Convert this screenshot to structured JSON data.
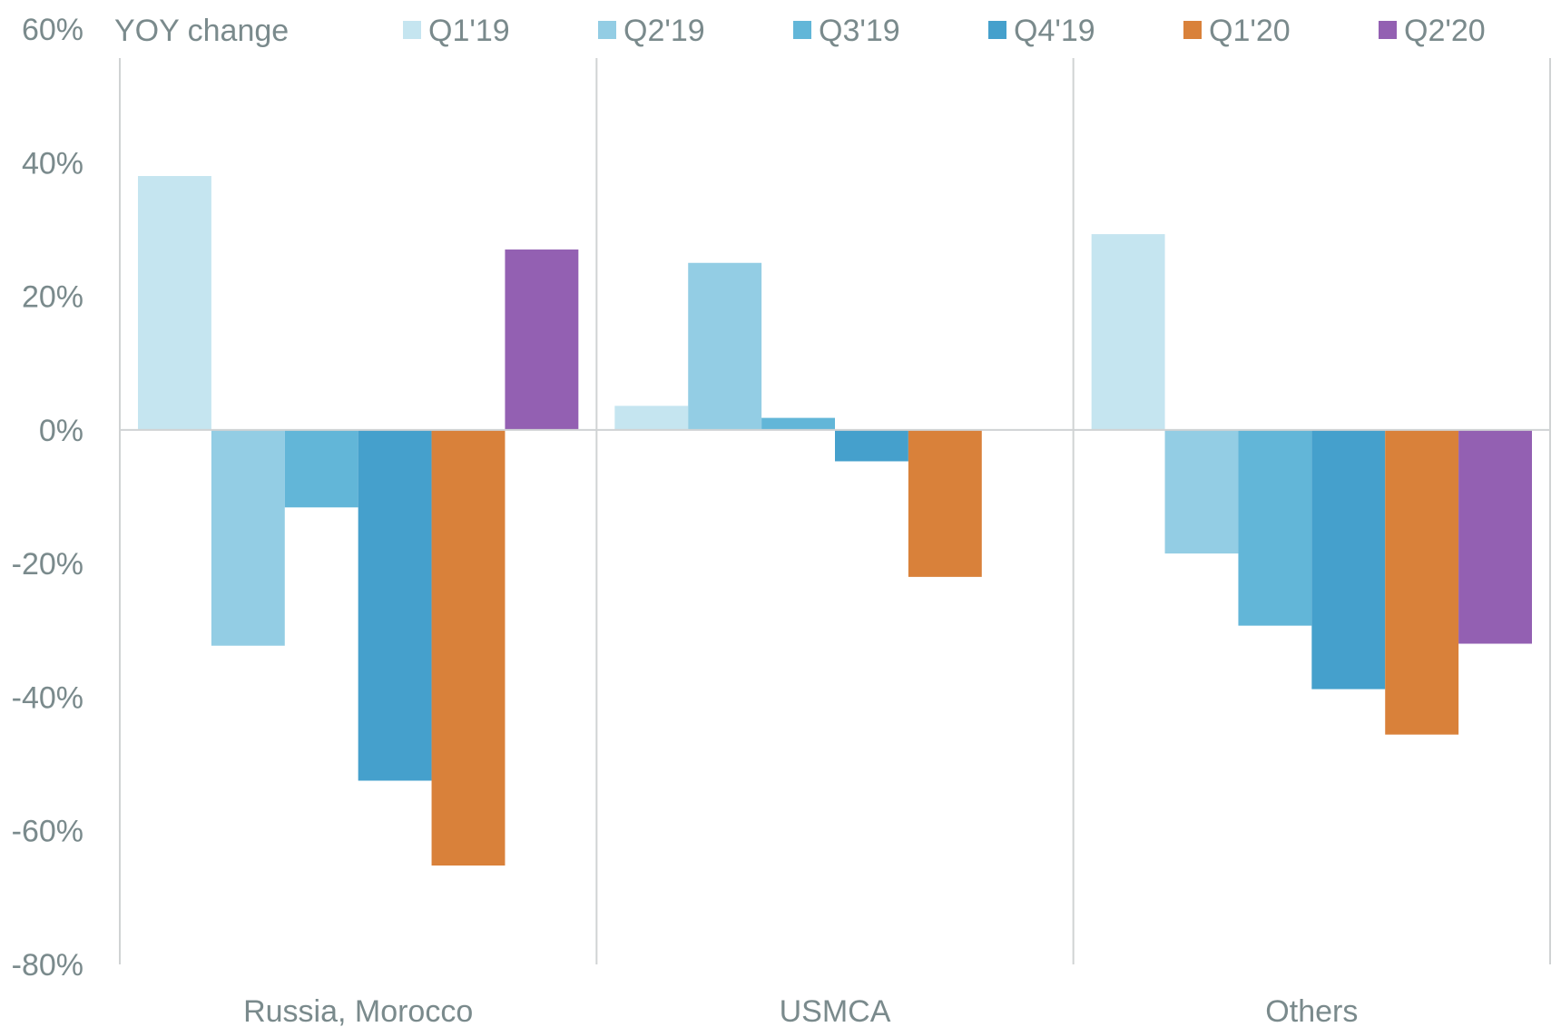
{
  "chart_data": {
    "type": "bar",
    "title": "",
    "xlabel": "",
    "ylabel": "YOY change",
    "ylim": [
      -80,
      60
    ],
    "yticks": [
      60,
      40,
      20,
      0,
      -20,
      -40,
      -60,
      -80
    ],
    "ytick_suffix": "%",
    "categories": [
      "Russia, Morocco",
      "USMCA",
      "Others"
    ],
    "series": [
      {
        "name": "Q1'19",
        "color": "#c5e5f0",
        "values": [
          38,
          3.6,
          29.3
        ]
      },
      {
        "name": "Q2'19",
        "color": "#93cde4",
        "values": [
          -32.3,
          25,
          -18.5
        ]
      },
      {
        "name": "Q3'19",
        "color": "#62b6d8",
        "values": [
          -11.6,
          1.8,
          -29.3
        ]
      },
      {
        "name": "Q4'19",
        "color": "#45a0cc",
        "values": [
          -52.5,
          -4.7,
          -38.8
        ]
      },
      {
        "name": "Q1'20",
        "color": "#d9813a",
        "values": [
          -65.2,
          -22,
          -45.6
        ]
      },
      {
        "name": "Q2'20",
        "color": "#9360b2",
        "values": [
          27,
          0,
          -32
        ]
      }
    ],
    "legend_position": "top",
    "grid": false
  }
}
